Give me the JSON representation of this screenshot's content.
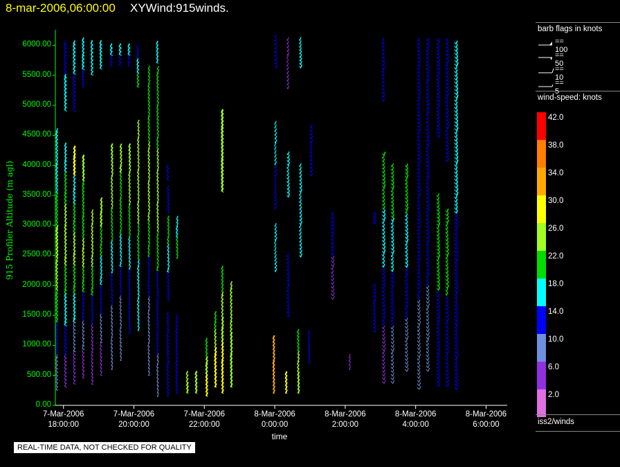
{
  "header": {
    "date_time": "8-mar-2006,06:00:00",
    "title": "XYWind:915winds."
  },
  "chart_data": {
    "type": "wind-barb",
    "ylabel": "915 Profiler Altitude (m agl)",
    "xlabel": "time",
    "ylim": [
      0,
      6200
    ],
    "yticks": [
      "0.00",
      "500.00",
      "1000.00",
      "1500.00",
      "2000.00",
      "2500.00",
      "3000.00",
      "3500.00",
      "4000.00",
      "4500.00",
      "5000.00",
      "5500.00",
      "6000.00"
    ],
    "xlim_hours": [
      17.77,
      30.6
    ],
    "xticks": [
      {
        "line1": "7-Mar-2006",
        "line2": "18:00:00"
      },
      {
        "line1": "7-Mar-2006",
        "line2": "20:00:00"
      },
      {
        "line1": "7-Mar-2006",
        "line2": "22:00:00"
      },
      {
        "line1": "8-Mar-2006",
        "line2": "0:00:00"
      },
      {
        "line1": "8-Mar-2006",
        "line2": "2:00:00"
      },
      {
        "line1": "8-Mar-2006",
        "line2": "4:00:00"
      },
      {
        "line1": "8-Mar-2006",
        "line2": "6:00:00"
      }
    ],
    "profiles": [
      {
        "t": 17.85,
        "bottom": 250,
        "top": 4550,
        "speed": [
          8,
          14,
          20,
          24,
          26,
          22,
          18,
          16
        ],
        "dir": 250
      },
      {
        "t": 18.1,
        "bottom": 300,
        "top": 4300,
        "speed": [
          6,
          12,
          16,
          22,
          24,
          24,
          20,
          16
        ],
        "dir": 255
      },
      {
        "t": 18.1,
        "bottom": 4900,
        "top": 6000,
        "speed": [
          16,
          16,
          14,
          14
        ],
        "dir": 260
      },
      {
        "t": 18.35,
        "bottom": 350,
        "top": 4250,
        "speed": [
          6,
          10,
          16,
          22,
          24,
          22,
          18,
          30
        ],
        "dir": 255
      },
      {
        "t": 18.35,
        "bottom": 4900,
        "top": 6000,
        "speed": [
          14,
          14,
          16,
          16
        ],
        "dir": 260
      },
      {
        "t": 18.6,
        "bottom": 450,
        "top": 4100,
        "speed": [
          6,
          8,
          14,
          22,
          24,
          22,
          20,
          26
        ],
        "dir": 250
      },
      {
        "t": 18.6,
        "bottom": 5300,
        "top": 6050,
        "speed": [
          14,
          16,
          18
        ],
        "dir": 255
      },
      {
        "t": 18.85,
        "bottom": 350,
        "top": 3200,
        "speed": [
          6,
          6,
          14,
          20,
          24,
          24
        ],
        "dir": 245
      },
      {
        "t": 18.85,
        "bottom": 5500,
        "top": 6000,
        "speed": [
          16,
          18
        ],
        "dir": 255
      },
      {
        "t": 19.1,
        "bottom": 500,
        "top": 3400,
        "speed": [
          6,
          8,
          14,
          18,
          22,
          26
        ],
        "dir": 245
      },
      {
        "t": 19.1,
        "bottom": 5600,
        "top": 6000,
        "speed": [
          16,
          18
        ],
        "dir": 255
      },
      {
        "t": 19.4,
        "bottom": 600,
        "top": 4300,
        "speed": [
          8,
          10,
          14,
          18,
          22,
          24,
          26
        ],
        "dir": 240
      },
      {
        "t": 19.4,
        "bottom": 5650,
        "top": 5950,
        "speed": [
          14,
          16
        ],
        "dir": 255
      },
      {
        "t": 19.65,
        "bottom": 750,
        "top": 4300,
        "speed": [
          8,
          10,
          14,
          16,
          20,
          22,
          26
        ],
        "dir": 240
      },
      {
        "t": 19.65,
        "bottom": 5650,
        "top": 5950,
        "speed": [
          14,
          16
        ],
        "dir": 255
      },
      {
        "t": 19.9,
        "bottom": 1200,
        "top": 4300,
        "speed": [
          14,
          14,
          18,
          22,
          24,
          26
        ],
        "dir": 240
      },
      {
        "t": 19.9,
        "bottom": 5650,
        "top": 5950,
        "speed": [
          14,
          16
        ],
        "dir": 255
      },
      {
        "t": 20.15,
        "bottom": 1250,
        "top": 4700,
        "speed": [
          16,
          18,
          22,
          24,
          24,
          24
        ],
        "dir": 240
      },
      {
        "t": 20.15,
        "bottom": 5300,
        "top": 5950,
        "speed": [
          20,
          16,
          14
        ],
        "dir": 250
      },
      {
        "t": 20.45,
        "bottom": 500,
        "top": 5600,
        "speed": [
          10,
          10,
          14,
          20,
          24,
          24,
          22,
          20
        ],
        "dir": 240
      },
      {
        "t": 20.7,
        "bottom": 150,
        "top": 5600,
        "speed": [
          10,
          12,
          14,
          20,
          24,
          24,
          22,
          20
        ],
        "dir": 240
      },
      {
        "t": 20.7,
        "bottom": 5700,
        "top": 6000,
        "speed": [
          16,
          16
        ],
        "dir": 250
      },
      {
        "t": 21.0,
        "bottom": 150,
        "top": 1500,
        "speed": [
          14,
          14,
          14
        ],
        "dir": 245
      },
      {
        "t": 21.0,
        "bottom": 1750,
        "top": 3100,
        "speed": [
          14,
          18,
          22
        ],
        "dir": 240
      },
      {
        "t": 21.0,
        "bottom": 3200,
        "top": 3600,
        "speed": [
          14
        ],
        "dir": 240
      },
      {
        "t": 21.0,
        "bottom": 3750,
        "top": 3950,
        "speed": [
          14
        ],
        "dir": 250
      },
      {
        "t": 21.25,
        "bottom": 200,
        "top": 1450,
        "speed": [
          14,
          14
        ],
        "dir": 245
      },
      {
        "t": 21.25,
        "bottom": 2450,
        "top": 3100,
        "speed": [
          22,
          16
        ],
        "dir": 240
      },
      {
        "t": 21.55,
        "bottom": 200,
        "top": 500,
        "speed": [
          26,
          24
        ],
        "dir": 250
      },
      {
        "t": 21.8,
        "bottom": 200,
        "top": 500,
        "speed": [
          26,
          26
        ],
        "dir": 250
      },
      {
        "t": 22.1,
        "bottom": 150,
        "top": 1050,
        "speed": [
          30,
          26,
          22
        ],
        "dir": 250
      },
      {
        "t": 22.35,
        "bottom": 300,
        "top": 1500,
        "speed": [
          30,
          28,
          24,
          22
        ],
        "dir": 250
      },
      {
        "t": 22.55,
        "bottom": 200,
        "top": 2250,
        "speed": [
          30,
          28,
          26,
          24,
          22
        ],
        "dir": 250
      },
      {
        "t": 22.55,
        "bottom": 3550,
        "top": 4850,
        "speed": [
          26,
          26
        ],
        "dir": 260
      },
      {
        "t": 22.8,
        "bottom": 300,
        "top": 2000,
        "speed": [
          26,
          26,
          24,
          24
        ],
        "dir": 250
      },
      {
        "t": 24.0,
        "bottom": 200,
        "top": 1100,
        "speed": [
          34,
          34,
          32
        ],
        "dir": 245
      },
      {
        "t": 24.0,
        "bottom": 2250,
        "top": 3000,
        "speed": [
          16,
          18
        ],
        "dir": 220
      },
      {
        "t": 24.0,
        "bottom": 3300,
        "top": 4700,
        "speed": [
          14,
          18
        ],
        "dir": 220
      },
      {
        "t": 24.0,
        "bottom": 5650,
        "top": 6150,
        "speed": [
          14
        ],
        "dir": 215
      },
      {
        "t": 24.35,
        "bottom": 200,
        "top": 500,
        "speed": [
          30,
          30
        ],
        "dir": 245
      },
      {
        "t": 24.35,
        "bottom": 5300,
        "top": 6100,
        "speed": [
          6,
          6
        ],
        "dir": 220
      },
      {
        "t": 24.35,
        "bottom": 1500,
        "top": 2500,
        "speed": [
          14
        ],
        "dir": 215
      },
      {
        "t": 24.35,
        "bottom": 3500,
        "top": 4200,
        "speed": [
          18
        ],
        "dir": 215
      },
      {
        "t": 24.7,
        "bottom": 200,
        "top": 1200,
        "speed": [
          26,
          24,
          22
        ],
        "dir": 245
      },
      {
        "t": 24.7,
        "bottom": 2500,
        "top": 4000,
        "speed": [
          18,
          18,
          18
        ],
        "dir": 215
      },
      {
        "t": 24.7,
        "bottom": 5650,
        "top": 6100,
        "speed": [
          16
        ],
        "dir": 215
      },
      {
        "t": 25.0,
        "bottom": 700,
        "top": 1200,
        "speed": [
          14
        ],
        "dir": 240
      },
      {
        "t": 25.0,
        "bottom": 3850,
        "top": 4650,
        "speed": [
          14
        ],
        "dir": 215
      },
      {
        "t": 25.6,
        "bottom": 1800,
        "top": 3200,
        "speed": [
          6,
          14
        ],
        "dir": 210
      },
      {
        "t": 26.15,
        "bottom": 600,
        "top": 800,
        "speed": [
          6
        ],
        "dir": 240
      },
      {
        "t": 26.8,
        "bottom": 1250,
        "top": 2000,
        "speed": [
          14,
          14
        ],
        "dir": 215
      },
      {
        "t": 26.8,
        "bottom": 3050,
        "top": 3200,
        "speed": [
          14
        ],
        "dir": 215
      },
      {
        "t": 27.05,
        "bottom": 400,
        "top": 4200,
        "speed": [
          6,
          14,
          18,
          22
        ],
        "dir": 210
      },
      {
        "t": 27.05,
        "bottom": 5100,
        "top": 6100,
        "speed": [
          14,
          14
        ],
        "dir": 215
      },
      {
        "t": 27.3,
        "bottom": 400,
        "top": 4000,
        "speed": [
          8,
          14,
          18,
          22
        ],
        "dir": 210
      },
      {
        "t": 27.7,
        "bottom": 600,
        "top": 4000,
        "speed": [
          8,
          14,
          18,
          22
        ],
        "dir": 210
      },
      {
        "t": 28.05,
        "bottom": 300,
        "top": 6100,
        "speed": [
          8,
          14,
          14,
          14
        ],
        "dir": 210
      },
      {
        "t": 28.3,
        "bottom": 600,
        "top": 6100,
        "speed": [
          8,
          14,
          14,
          14
        ],
        "dir": 210
      },
      {
        "t": 28.6,
        "bottom": 350,
        "top": 3500,
        "speed": [
          14,
          22
        ],
        "dir": 210
      },
      {
        "t": 28.6,
        "bottom": 4500,
        "top": 6100,
        "speed": [
          14,
          14
        ],
        "dir": 210
      },
      {
        "t": 28.85,
        "bottom": 350,
        "top": 3250,
        "speed": [
          14,
          22
        ],
        "dir": 210
      },
      {
        "t": 28.85,
        "bottom": 4100,
        "top": 6100,
        "speed": [
          14,
          14
        ],
        "dir": 210
      },
      {
        "t": 29.1,
        "bottom": 300,
        "top": 6050,
        "speed": [
          14,
          18
        ],
        "dir": 205
      }
    ]
  },
  "legend": {
    "flags_title": "barb flags in knots",
    "flags": [
      {
        "label": "== 100"
      },
      {
        "label": "== 50"
      },
      {
        "label": "== 10"
      },
      {
        "label": "== 5"
      }
    ],
    "speed_title": "wind-speed: knots",
    "speed_bins": [
      {
        "label": "42.0",
        "color": "#ff0000"
      },
      {
        "label": "38.0",
        "color": "#ff7f00"
      },
      {
        "label": "34.0",
        "color": "#ffaa00"
      },
      {
        "label": "30.0",
        "color": "#ffff00"
      },
      {
        "label": "26.0",
        "color": "#a0ff20"
      },
      {
        "label": "22.0",
        "color": "#00dd00"
      },
      {
        "label": "18.0",
        "color": "#00ffff"
      },
      {
        "label": "14.0",
        "color": "#0000ff"
      },
      {
        "label": "10.0",
        "color": "#6f8fdf"
      },
      {
        "label": "6.0",
        "color": "#9030e0"
      },
      {
        "label": "2.0",
        "color": "#e070e0"
      }
    ],
    "source": "iss2/winds"
  },
  "notice": "REAL-TIME DATA, NOT CHECKED FOR QUALITY"
}
